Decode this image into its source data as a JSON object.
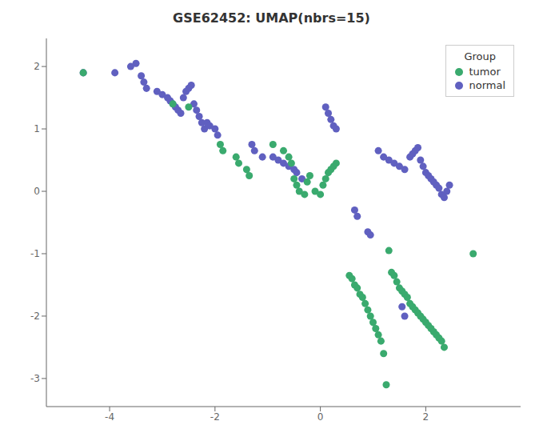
{
  "chart_data": {
    "type": "scatter",
    "title": "GSE62452: UMAP(nbrs=15)",
    "xlim": [
      -5.2,
      3.8
    ],
    "ylim": [
      -3.45,
      2.45
    ],
    "xticks": [
      -4,
      -2,
      0,
      2
    ],
    "yticks": [
      -3,
      -2,
      -1,
      0,
      1,
      2
    ],
    "grid": false,
    "legend": "upper right",
    "legend_title": "Group",
    "series": [
      {
        "name": "tumor",
        "color": "#3aaa6e",
        "x": [
          -4.5,
          -2.8,
          -2.5,
          -1.9,
          -1.85,
          -1.6,
          -1.55,
          -1.4,
          -1.35,
          -0.9,
          -0.7,
          -0.6,
          -0.55,
          -0.5,
          -0.45,
          -0.4,
          -0.3,
          -0.25,
          -0.2,
          -0.1,
          0.0,
          0.05,
          0.1,
          0.15,
          0.2,
          0.25,
          0.3,
          1.3,
          1.35,
          1.4,
          1.45,
          1.5,
          1.55,
          1.6,
          1.65,
          1.7,
          1.75,
          1.8,
          1.85,
          1.9,
          1.95,
          2.0,
          2.05,
          2.1,
          2.15,
          2.2,
          2.25,
          2.3,
          2.35,
          0.55,
          0.6,
          0.65,
          0.7,
          0.75,
          0.8,
          0.85,
          0.9,
          0.95,
          1.0,
          1.05,
          1.1,
          1.15,
          1.2,
          1.25,
          2.9
        ],
        "y": [
          1.9,
          1.4,
          1.35,
          0.75,
          0.65,
          0.55,
          0.45,
          0.35,
          0.25,
          0.75,
          0.65,
          0.55,
          0.45,
          0.2,
          0.1,
          0.0,
          -0.05,
          0.15,
          0.25,
          0.0,
          -0.05,
          0.1,
          0.2,
          0.3,
          0.35,
          0.4,
          0.45,
          -0.95,
          -1.3,
          -1.35,
          -1.45,
          -1.55,
          -1.6,
          -1.65,
          -1.7,
          -1.8,
          -1.85,
          -1.9,
          -1.95,
          -2.0,
          -2.05,
          -2.1,
          -2.15,
          -2.2,
          -2.25,
          -2.3,
          -2.35,
          -2.4,
          -2.5,
          -1.35,
          -1.4,
          -1.5,
          -1.55,
          -1.65,
          -1.7,
          -1.8,
          -1.9,
          -2.0,
          -2.1,
          -2.2,
          -2.3,
          -2.4,
          -2.6,
          -3.1,
          -1.0
        ]
      },
      {
        "name": "normal",
        "color": "#6060c0",
        "x": [
          -4.5,
          -3.9,
          -3.6,
          -3.5,
          -3.4,
          -3.35,
          -3.3,
          -3.1,
          -3.0,
          -2.9,
          -2.85,
          -2.8,
          -2.75,
          -2.7,
          -2.65,
          -2.6,
          -2.55,
          -2.5,
          -2.45,
          -2.4,
          -2.35,
          -2.3,
          -2.25,
          -2.2,
          -2.15,
          -2.1,
          -2.0,
          -1.95,
          -1.3,
          -1.25,
          -1.1,
          -0.9,
          -0.8,
          -0.7,
          -0.6,
          -0.5,
          -0.45,
          -0.35,
          0.1,
          0.15,
          0.2,
          0.25,
          0.3,
          1.1,
          1.2,
          1.3,
          1.4,
          1.5,
          1.6,
          1.7,
          1.75,
          1.8,
          1.85,
          1.9,
          1.95,
          2.0,
          2.05,
          2.1,
          2.15,
          2.2,
          2.25,
          2.3,
          2.35,
          2.4,
          2.45,
          0.65,
          0.7,
          0.9,
          0.95,
          1.55,
          1.6
        ],
        "y": [
          1.9,
          1.9,
          2.0,
          2.05,
          1.85,
          1.75,
          1.65,
          1.6,
          1.55,
          1.5,
          1.45,
          1.4,
          1.35,
          1.3,
          1.25,
          1.5,
          1.6,
          1.65,
          1.7,
          1.4,
          1.3,
          1.2,
          1.1,
          1.0,
          1.1,
          1.05,
          1.0,
          0.9,
          0.75,
          0.65,
          0.55,
          0.55,
          0.5,
          0.45,
          0.4,
          0.35,
          0.3,
          0.2,
          1.35,
          1.25,
          1.15,
          1.05,
          1.0,
          0.65,
          0.55,
          0.5,
          0.45,
          0.4,
          0.35,
          0.55,
          0.6,
          0.65,
          0.7,
          0.5,
          0.4,
          0.3,
          0.25,
          0.2,
          0.15,
          0.1,
          0.05,
          -0.05,
          -0.1,
          0.0,
          0.1,
          -0.3,
          -0.4,
          -0.65,
          -0.7,
          -1.85,
          -2.0
        ]
      }
    ]
  }
}
